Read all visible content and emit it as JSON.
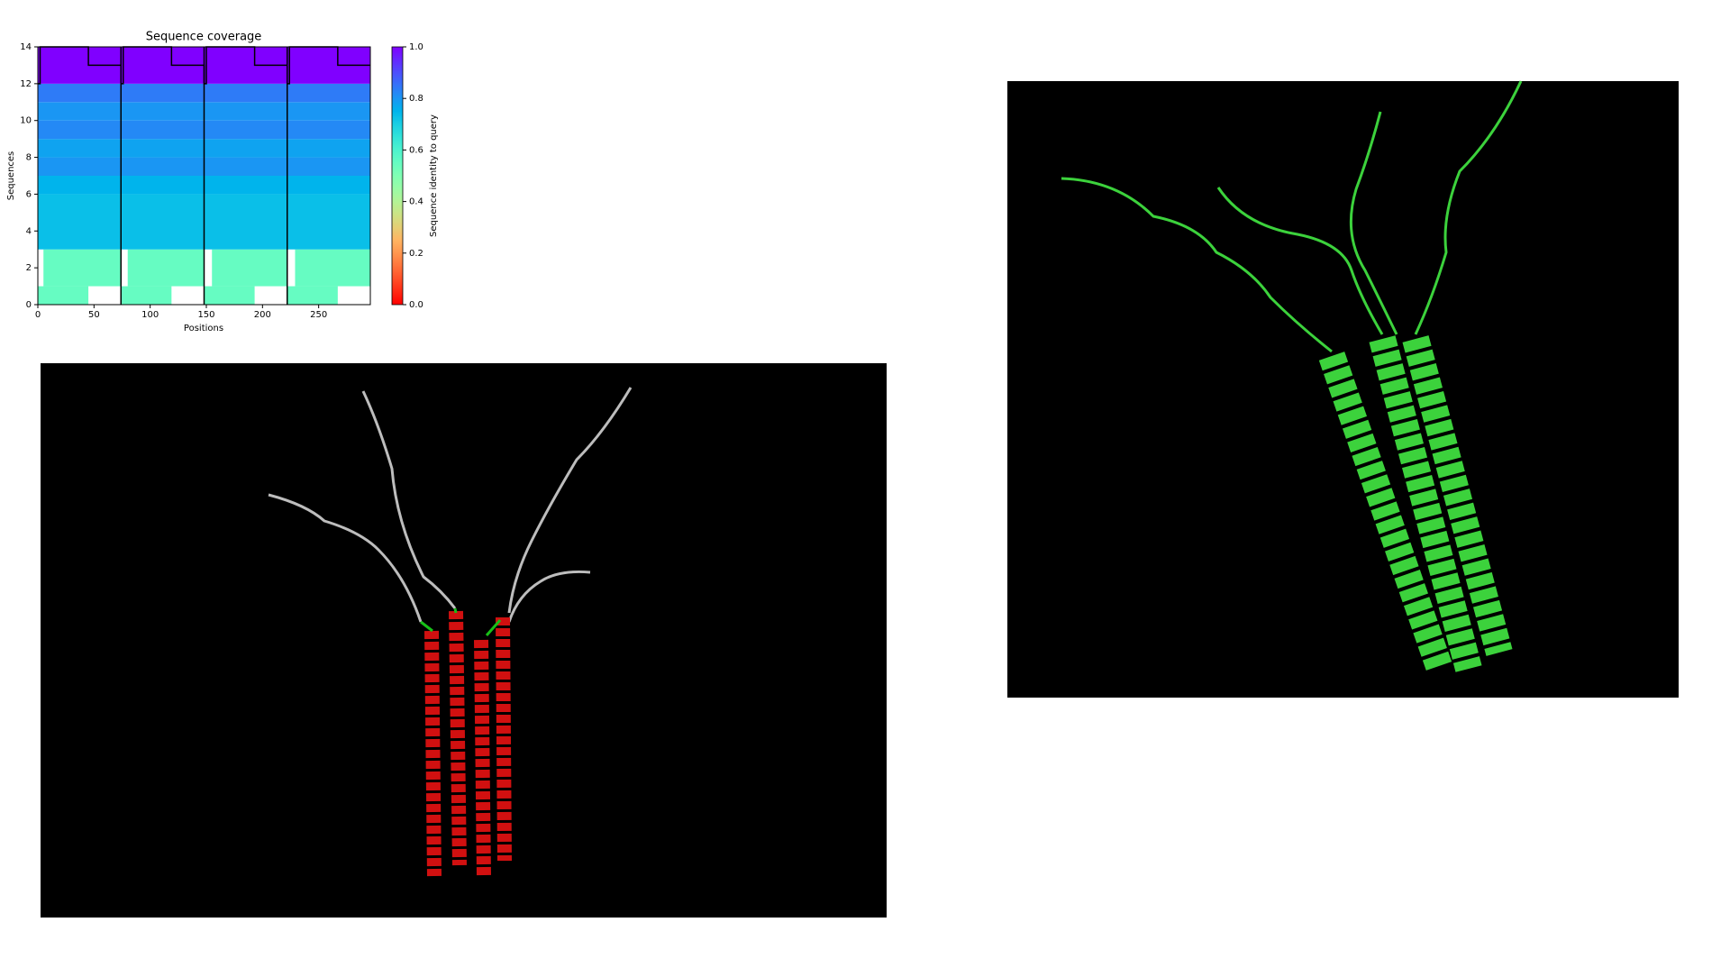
{
  "chart_data": {
    "type": "heatmap",
    "title": "Sequence coverage",
    "x_label": "Positions",
    "y_label": "Sequences",
    "xlim": [
      0,
      296
    ],
    "ylim": [
      0,
      14
    ],
    "xticks": [
      0,
      50,
      100,
      150,
      200,
      250
    ],
    "yticks": [
      0,
      2,
      4,
      6,
      8,
      10,
      12,
      14
    ],
    "colormap": "rainbow_r",
    "rows": [
      {
        "y": [
          0,
          1
        ],
        "identity": 0.55,
        "segments": [
          [
            0,
            45
          ],
          [
            74,
            119
          ],
          [
            148,
            193
          ],
          [
            222,
            267
          ]
        ]
      },
      {
        "y": [
          1,
          3
        ],
        "identity": 0.55,
        "segments": [
          [
            5,
            74
          ],
          [
            80,
            148
          ],
          [
            155,
            222
          ],
          [
            229,
            296
          ]
        ]
      },
      {
        "y": [
          3,
          6
        ],
        "identity": 0.73,
        "segments": [
          [
            0,
            296
          ]
        ]
      },
      {
        "y": [
          6,
          7
        ],
        "identity": 0.75,
        "segments": [
          [
            0,
            296
          ]
        ]
      },
      {
        "y": [
          7,
          8
        ],
        "identity": 0.8,
        "segments": [
          [
            0,
            296
          ]
        ]
      },
      {
        "y": [
          8,
          9
        ],
        "identity": 0.78,
        "segments": [
          [
            0,
            296
          ]
        ]
      },
      {
        "y": [
          9,
          10
        ],
        "identity": 0.82,
        "segments": [
          [
            0,
            296
          ]
        ]
      },
      {
        "y": [
          10,
          11
        ],
        "identity": 0.8,
        "segments": [
          [
            0,
            296
          ]
        ]
      },
      {
        "y": [
          11,
          12
        ],
        "identity": 0.84,
        "segments": [
          [
            0,
            296
          ]
        ]
      },
      {
        "y": [
          12,
          14
        ],
        "identity": 1.0,
        "segments": [
          [
            0,
            296
          ]
        ]
      }
    ],
    "chain_breaks": [
      74,
      148,
      222
    ],
    "coverage": {
      "x": [
        0,
        2,
        2,
        45,
        45,
        74,
        74,
        76,
        76,
        119,
        119,
        148,
        148,
        150,
        150,
        193,
        193,
        222,
        222,
        224,
        224,
        267,
        267,
        296
      ],
      "values": [
        12,
        12,
        14,
        14,
        13,
        13,
        12,
        12,
        14,
        14,
        13,
        13,
        12,
        12,
        14,
        14,
        13,
        13,
        12,
        12,
        14,
        14,
        13,
        13
      ]
    },
    "colorbar": {
      "label": "Sequence identity to query",
      "lim": [
        0,
        1
      ],
      "ticks": [
        {
          "value": 0,
          "label": "0.0"
        },
        {
          "value": 0.2,
          "label": "0.2"
        },
        {
          "value": 0.4,
          "label": "0.4"
        },
        {
          "value": 0.6,
          "label": "0.6"
        },
        {
          "value": 0.8,
          "label": "0.8"
        },
        {
          "value": 1,
          "label": "1.0"
        }
      ]
    }
  }
}
